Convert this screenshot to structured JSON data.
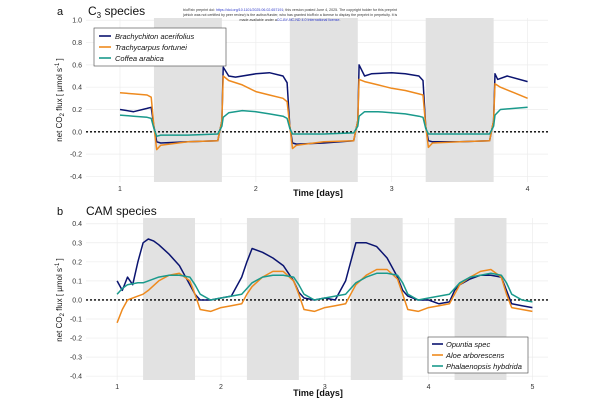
{
  "colors": {
    "navy": "#0b1470",
    "orange": "#ee8a1e",
    "teal": "#1a9a8c",
    "shade": "#e2e2e2",
    "grid": "#ececec",
    "link": "#2b36c8"
  },
  "preprint_note": {
    "line1_a": "bioRxiv preprint doi: ",
    "line1_link": "https://doi.org/10.1101/2025.06.02.657191",
    "line1_b": "; this version posted June 4, 2025. The copyright holder for this preprint",
    "line2": "(which was not certified by peer review) is the author/funder, who has granted bioRxiv a license to display the preprint in perpetuity. It is",
    "line3_a": "made available under a",
    "line3_link": "CC-BY-NC-ND 4.0 International license",
    "line3_b": "."
  },
  "chart_data": [
    {
      "type": "line",
      "panel_label": "a",
      "title_main": "C",
      "title_sub": "3",
      "title_rest": " species",
      "xlabel": "Time [days]",
      "ylabel_parts": [
        "net CO",
        "2",
        " flux [ µmol s",
        "-1",
        " ]"
      ],
      "xlim": [
        0.75,
        4.15
      ],
      "ylim": [
        -0.45,
        1.02
      ],
      "xticks": [
        1,
        2,
        3,
        4
      ],
      "yticks": [
        1.0,
        0.8,
        0.6,
        0.4,
        0.2,
        0.0,
        -0.2,
        -0.4
      ],
      "ytick_labels": [
        "1.0",
        "0.8",
        "0.6",
        "0.4",
        "0.2",
        "0.0",
        "-0.2",
        "-0.4"
      ],
      "dark_periods": [
        [
          1.25,
          1.75
        ],
        [
          2.25,
          2.75
        ],
        [
          3.25,
          3.75
        ]
      ],
      "legend_position": "top-left",
      "series": [
        {
          "name": "Brachychiton acerifolius",
          "color_key": "navy",
          "x": [
            1.0,
            1.1,
            1.2,
            1.23,
            1.25,
            1.27,
            1.3,
            1.5,
            1.72,
            1.75,
            1.76,
            1.8,
            1.85,
            2.0,
            2.1,
            2.2,
            2.23,
            2.25,
            2.27,
            2.3,
            2.5,
            2.72,
            2.75,
            2.76,
            2.8,
            2.85,
            3.0,
            3.1,
            3.2,
            3.23,
            3.25,
            3.27,
            3.3,
            3.5,
            3.72,
            3.75,
            3.76,
            3.78,
            3.85,
            4.0
          ],
          "y": [
            0.2,
            0.18,
            0.21,
            0.22,
            0.05,
            -0.09,
            -0.1,
            -0.09,
            -0.08,
            0.1,
            0.58,
            0.5,
            0.49,
            0.52,
            0.53,
            0.5,
            0.44,
            0.05,
            -0.1,
            -0.11,
            -0.1,
            -0.08,
            0.1,
            0.6,
            0.5,
            0.52,
            0.53,
            0.52,
            0.5,
            0.46,
            0.05,
            -0.08,
            -0.09,
            -0.09,
            -0.08,
            0.1,
            0.52,
            0.47,
            0.5,
            0.45
          ]
        },
        {
          "name": "Trachycarpus fortunei",
          "color_key": "orange",
          "x": [
            1.0,
            1.1,
            1.2,
            1.23,
            1.25,
            1.27,
            1.3,
            1.5,
            1.72,
            1.75,
            1.76,
            1.8,
            1.9,
            2.0,
            2.1,
            2.2,
            2.23,
            2.25,
            2.27,
            2.3,
            2.5,
            2.72,
            2.75,
            2.76,
            2.8,
            2.9,
            3.0,
            3.1,
            3.2,
            3.23,
            3.25,
            3.27,
            3.3,
            3.5,
            3.72,
            3.75,
            3.76,
            3.8,
            3.9,
            4.0
          ],
          "y": [
            0.35,
            0.34,
            0.33,
            0.31,
            0.05,
            -0.16,
            -0.12,
            -0.09,
            -0.08,
            0.1,
            0.5,
            0.46,
            0.42,
            0.36,
            0.33,
            0.3,
            0.27,
            0.05,
            -0.15,
            -0.12,
            -0.09,
            -0.08,
            0.1,
            0.47,
            0.45,
            0.42,
            0.39,
            0.37,
            0.34,
            0.33,
            0.05,
            -0.14,
            -0.1,
            -0.09,
            -0.08,
            0.1,
            0.43,
            0.4,
            0.35,
            0.3
          ]
        },
        {
          "name": "Coffea arabica",
          "color_key": "teal",
          "x": [
            1.0,
            1.1,
            1.2,
            1.23,
            1.25,
            1.27,
            1.3,
            1.5,
            1.72,
            1.75,
            1.76,
            1.8,
            1.9,
            2.0,
            2.1,
            2.2,
            2.23,
            2.25,
            2.27,
            2.3,
            2.5,
            2.72,
            2.75,
            2.76,
            2.8,
            2.9,
            3.0,
            3.1,
            3.2,
            3.23,
            3.25,
            3.27,
            3.3,
            3.5,
            3.72,
            3.75,
            3.76,
            3.8,
            3.9,
            4.0
          ],
          "y": [
            0.15,
            0.14,
            0.13,
            0.12,
            0.03,
            -0.04,
            -0.03,
            -0.03,
            -0.02,
            0.05,
            0.13,
            0.17,
            0.19,
            0.18,
            0.16,
            0.14,
            0.12,
            0.03,
            -0.02,
            -0.02,
            -0.02,
            -0.01,
            0.05,
            0.14,
            0.18,
            0.18,
            0.17,
            0.16,
            0.14,
            0.13,
            0.03,
            -0.02,
            -0.02,
            -0.02,
            -0.02,
            0.05,
            0.15,
            0.2,
            0.21,
            0.22
          ]
        }
      ]
    },
    {
      "type": "line",
      "panel_label": "b",
      "title_main": "CAM species",
      "xlabel": "Time [days]",
      "ylabel_parts": [
        "net CO",
        "2",
        " flux [ µmol s",
        "-1",
        " ]"
      ],
      "xlim": [
        0.7,
        5.15
      ],
      "ylim": [
        -0.42,
        0.43
      ],
      "xticks": [
        1,
        2,
        3,
        4,
        5
      ],
      "yticks": [
        0.4,
        0.3,
        0.2,
        0.1,
        0.0,
        -0.1,
        -0.2,
        -0.3,
        -0.4
      ],
      "ytick_labels": [
        "0.4",
        "0.3",
        "0.2",
        "0.1",
        "0.0",
        "-0.1",
        "-0.2",
        "-0.3",
        "-0.4"
      ],
      "dark_periods": [
        [
          1.25,
          1.75
        ],
        [
          2.25,
          2.75
        ],
        [
          3.25,
          3.75
        ],
        [
          4.25,
          4.75
        ]
      ],
      "legend_position": "bottom-right",
      "series": [
        {
          "name": "Opuntia spec",
          "color_key": "navy",
          "x": [
            1.0,
            1.05,
            1.1,
            1.15,
            1.2,
            1.25,
            1.3,
            1.35,
            1.4,
            1.5,
            1.6,
            1.7,
            1.75,
            1.8,
            1.9,
            2.0,
            2.1,
            2.2,
            2.25,
            2.3,
            2.4,
            2.5,
            2.6,
            2.7,
            2.75,
            2.8,
            2.9,
            3.0,
            3.1,
            3.2,
            3.25,
            3.3,
            3.4,
            3.5,
            3.6,
            3.7,
            3.75,
            3.8,
            3.9,
            4.0,
            4.1,
            4.2,
            4.25,
            4.3,
            4.4,
            4.5,
            4.6,
            4.7,
            4.75,
            4.8,
            4.9,
            5.0
          ],
          "y": [
            0.1,
            0.05,
            0.12,
            0.08,
            0.2,
            0.3,
            0.32,
            0.31,
            0.29,
            0.24,
            0.18,
            0.08,
            0.03,
            0.0,
            0.0,
            0.01,
            0.02,
            0.12,
            0.2,
            0.27,
            0.25,
            0.22,
            0.18,
            0.1,
            0.04,
            0.01,
            0.0,
            0.01,
            0.0,
            0.1,
            0.2,
            0.3,
            0.3,
            0.28,
            0.22,
            0.12,
            0.05,
            0.02,
            0.0,
            0.0,
            -0.02,
            -0.01,
            0.05,
            0.08,
            0.11,
            0.13,
            0.13,
            0.12,
            0.05,
            -0.02,
            -0.03,
            -0.04
          ]
        },
        {
          "name": "Aloe arborescens",
          "color_key": "orange",
          "x": [
            1.0,
            1.05,
            1.1,
            1.2,
            1.25,
            1.3,
            1.4,
            1.5,
            1.6,
            1.7,
            1.75,
            1.8,
            1.9,
            2.0,
            2.1,
            2.2,
            2.25,
            2.3,
            2.4,
            2.5,
            2.6,
            2.7,
            2.75,
            2.8,
            2.9,
            3.0,
            3.1,
            3.2,
            3.25,
            3.3,
            3.4,
            3.5,
            3.6,
            3.7,
            3.75,
            3.8,
            3.9,
            4.0,
            4.1,
            4.2,
            4.25,
            4.3,
            4.4,
            4.5,
            4.6,
            4.7,
            4.75,
            4.8,
            4.9,
            5.0
          ],
          "y": [
            -0.12,
            -0.05,
            0.0,
            0.02,
            0.03,
            0.05,
            0.1,
            0.13,
            0.14,
            0.1,
            0.03,
            -0.05,
            -0.06,
            -0.04,
            -0.03,
            -0.02,
            0.03,
            0.07,
            0.12,
            0.15,
            0.15,
            0.1,
            0.03,
            -0.05,
            -0.06,
            -0.04,
            -0.03,
            -0.02,
            0.03,
            0.08,
            0.13,
            0.16,
            0.16,
            0.11,
            0.03,
            -0.05,
            -0.06,
            -0.04,
            -0.03,
            -0.02,
            0.03,
            0.08,
            0.12,
            0.15,
            0.16,
            0.12,
            0.03,
            -0.04,
            -0.05,
            -0.06
          ]
        },
        {
          "name": "Phalaenopsis hybdrida",
          "color_key": "teal",
          "x": [
            1.0,
            1.05,
            1.1,
            1.2,
            1.25,
            1.3,
            1.4,
            1.5,
            1.6,
            1.7,
            1.75,
            1.8,
            1.9,
            2.0,
            2.1,
            2.2,
            2.25,
            2.3,
            2.4,
            2.5,
            2.6,
            2.7,
            2.75,
            2.8,
            2.9,
            3.0,
            3.1,
            3.2,
            3.25,
            3.3,
            3.4,
            3.5,
            3.6,
            3.7,
            3.75,
            3.8,
            3.9,
            4.0,
            4.1,
            4.2,
            4.25,
            4.3,
            4.4,
            4.5,
            4.6,
            4.7,
            4.75,
            4.8,
            4.9,
            5.0
          ],
          "y": [
            0.03,
            0.06,
            0.08,
            0.09,
            0.09,
            0.1,
            0.12,
            0.13,
            0.13,
            0.12,
            0.08,
            0.03,
            0.0,
            0.01,
            0.02,
            0.03,
            0.06,
            0.09,
            0.12,
            0.13,
            0.13,
            0.12,
            0.08,
            0.03,
            0.0,
            0.01,
            0.02,
            0.03,
            0.06,
            0.09,
            0.12,
            0.14,
            0.14,
            0.13,
            0.09,
            0.03,
            0.0,
            0.01,
            0.02,
            0.03,
            0.06,
            0.09,
            0.12,
            0.13,
            0.14,
            0.13,
            0.09,
            0.03,
            0.0,
            -0.01
          ]
        }
      ]
    }
  ]
}
